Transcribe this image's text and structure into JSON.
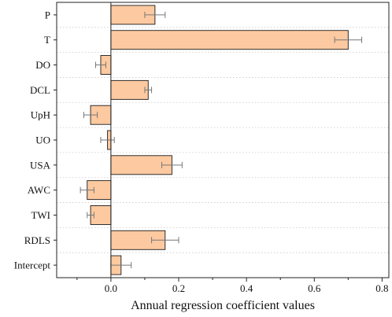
{
  "chart_data": {
    "type": "bar",
    "orientation": "horizontal",
    "title": "",
    "xlabel": "Annual regression coefficient values",
    "ylabel": "",
    "categories": [
      "P",
      "T",
      "DO",
      "DCL",
      "UpH",
      "UO",
      "USA",
      "AWC",
      "TWI",
      "RDLS",
      "Intercept"
    ],
    "values": [
      0.13,
      0.7,
      -0.03,
      0.11,
      -0.06,
      -0.01,
      0.18,
      -0.07,
      -0.06,
      0.16,
      0.03
    ],
    "error": [
      0.03,
      0.04,
      0.015,
      0.01,
      0.02,
      0.02,
      0.03,
      0.02,
      0.01,
      0.04,
      0.03
    ],
    "xlim": [
      -0.16,
      0.82
    ],
    "xticks": [
      0.0,
      0.2,
      0.4,
      0.6,
      0.8
    ],
    "xtick_labels": [
      "0.0",
      "0.2",
      "0.4",
      "0.6",
      "0.8"
    ],
    "grid": "horizontal dotted",
    "legend": "none",
    "bar_color": "#fdc9a0",
    "bar_edge_color": "#1a1a1a",
    "error_color": "#777777"
  }
}
